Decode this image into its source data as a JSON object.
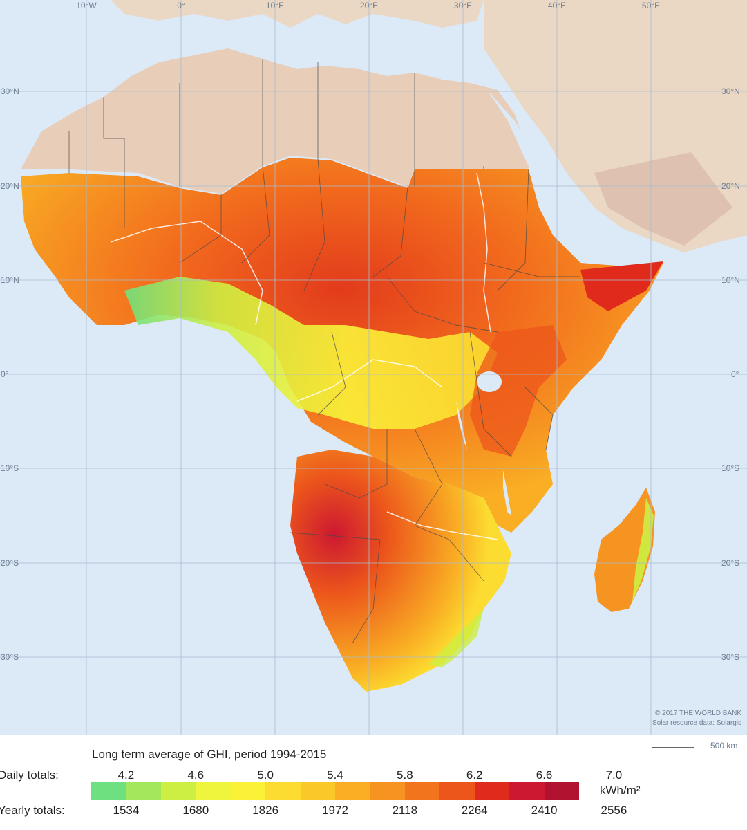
{
  "map": {
    "longitude_labels": [
      "10°W",
      "0°",
      "10°E",
      "20°E",
      "30°E",
      "40°E",
      "50°E"
    ],
    "latitude_labels": [
      "30°N",
      "20°N",
      "10°N",
      "0°",
      "10°S",
      "20°S",
      "30°S"
    ],
    "credit_line_1": "© 2017 THE WORLD BANK",
    "credit_line_2": "Solar resource data: Solargis",
    "scale_label": "500 km",
    "colors": {
      "ocean": "#dce9f7",
      "land_outside": "#ead7c4",
      "land_outside_dark": "#d9b9a6",
      "river": "#ffffff",
      "border": "#4a4a4a",
      "grid": "#a9bccf"
    }
  },
  "legend": {
    "title": "Long term average of GHI, period 1994-2015",
    "daily_label": "Daily totals:",
    "yearly_label": "Yearly totals:",
    "daily_ticks": [
      "4.2",
      "4.6",
      "5.0",
      "5.4",
      "5.8",
      "6.2",
      "6.6",
      "7.0"
    ],
    "yearly_ticks": [
      "1534",
      "1680",
      "1826",
      "1972",
      "2118",
      "2264",
      "2410",
      "2556"
    ],
    "unit": "kWh/m²",
    "colors": [
      "#6ee07f",
      "#a3e85a",
      "#cdee42",
      "#eef53c",
      "#fbf238",
      "#fcdc30",
      "#fbc829",
      "#f9ae24",
      "#f69421",
      "#f2751d",
      "#ec561b",
      "#e02a1c",
      "#cc1831",
      "#b11230"
    ]
  }
}
